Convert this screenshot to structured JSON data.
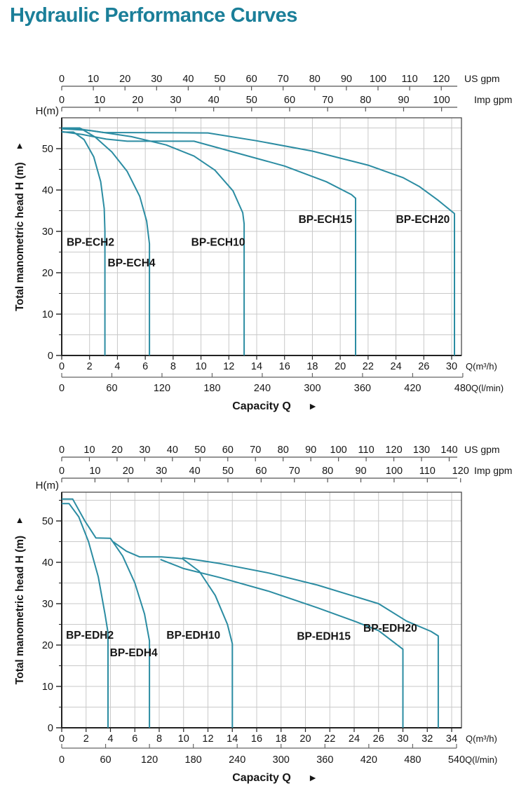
{
  "title": "Hydraulic Performance Curves",
  "colors": {
    "title": "#1b7f99",
    "curve": "#2b8ca2",
    "grid": "#c9c9c9",
    "frame": "#3d3d3d",
    "axis": "#555555",
    "text": "#161616"
  },
  "chart_data": [
    {
      "type": "line",
      "name": "BP-ECH series hydraulic performance",
      "top_axes": [
        {
          "unit": "US gpm",
          "ticks": [
            0,
            10,
            20,
            30,
            40,
            50,
            60,
            70,
            80,
            90,
            100,
            110,
            120
          ]
        },
        {
          "unit": "Imp gpm",
          "ticks": [
            0,
            10,
            20,
            30,
            40,
            50,
            60,
            70,
            80,
            90,
            100
          ]
        }
      ],
      "x_axes": [
        {
          "unit": "Q(m³/h)",
          "ticks": [
            0,
            2,
            4,
            6,
            8,
            10,
            12,
            14,
            16,
            18,
            20,
            22,
            24,
            26,
            30
          ]
        },
        {
          "unit": "Q(l/min)",
          "ticks": [
            0,
            60,
            120,
            180,
            240,
            300,
            360,
            420,
            480
          ]
        }
      ],
      "y_axis": {
        "corner_label": "H(m)",
        "axis_label": "Total manometric head H (m)",
        "arrow": "▲",
        "ticks": [
          0,
          10,
          20,
          30,
          40,
          50
        ],
        "minor_step": 5
      },
      "caption": {
        "text": "Capacity Q",
        "arrow": "►"
      },
      "series": [
        {
          "name": "BP-ECH2",
          "label_xy": [
            0.35,
            26.5
          ],
          "points": [
            [
              0,
              54
            ],
            [
              0.85,
              54
            ],
            [
              1.6,
              52.2
            ],
            [
              2.3,
              48
            ],
            [
              2.8,
              42
            ],
            [
              3.05,
              35.5
            ],
            [
              3.1,
              30
            ],
            [
              3.1,
              0
            ]
          ]
        },
        {
          "name": "BP-ECH4",
          "label_xy": [
            3.3,
            21.5
          ],
          "points": [
            [
              0,
              55
            ],
            [
              1.3,
              55
            ],
            [
              2.4,
              52.8
            ],
            [
              3.6,
              49.2
            ],
            [
              4.7,
              44.5
            ],
            [
              5.6,
              38.5
            ],
            [
              6.1,
              32.5
            ],
            [
              6.3,
              27
            ],
            [
              6.3,
              0
            ]
          ]
        },
        {
          "name": "BP-ECH10",
          "label_xy": [
            9.3,
            26.5
          ],
          "points": [
            [
              0,
              54.8
            ],
            [
              2,
              54.4
            ],
            [
              5,
              52.9
            ],
            [
              7.5,
              50.9
            ],
            [
              9.5,
              48.2
            ],
            [
              11,
              44.8
            ],
            [
              12.3,
              39.8
            ],
            [
              13,
              34.5
            ],
            [
              13.1,
              31.8
            ],
            [
              13.1,
              0
            ]
          ]
        },
        {
          "name": "BP-ECH15",
          "label_xy": [
            17,
            32
          ],
          "points": [
            [
              0,
              54.1
            ],
            [
              1.5,
              53.4
            ],
            [
              3.2,
              52.3
            ],
            [
              4.7,
              51.8
            ],
            [
              9.5,
              51.8
            ],
            [
              12.2,
              49.3
            ],
            [
              16,
              45.8
            ],
            [
              19,
              42
            ],
            [
              20.8,
              38.9
            ],
            [
              21.1,
              38
            ],
            [
              21.1,
              0
            ]
          ]
        },
        {
          "name": "BP-ECH20",
          "label_xy": [
            24,
            32
          ],
          "points": [
            [
              0,
              54.9
            ],
            [
              1.2,
              54.8
            ],
            [
              3,
              53.9
            ],
            [
              10.5,
              53.8
            ],
            [
              14,
              51.9
            ],
            [
              18,
              49.4
            ],
            [
              22,
              46
            ],
            [
              24.5,
              43
            ],
            [
              25.7,
              40.8
            ],
            [
              28,
              37.6
            ],
            [
              30.4,
              34.3
            ],
            [
              30.4,
              0
            ]
          ]
        }
      ]
    },
    {
      "type": "line",
      "name": "BP-EDH series hydraulic performance",
      "top_axes": [
        {
          "unit": "US gpm",
          "ticks": [
            0,
            10,
            20,
            30,
            40,
            50,
            60,
            70,
            80,
            90,
            100,
            110,
            120,
            130,
            140
          ]
        },
        {
          "unit": "Imp gpm",
          "ticks": [
            0,
            10,
            20,
            30,
            40,
            50,
            60,
            70,
            80,
            90,
            100,
            110,
            120
          ]
        }
      ],
      "x_axes": [
        {
          "unit": "Q(m³/h)",
          "ticks": [
            0,
            2,
            4,
            6,
            8,
            10,
            12,
            14,
            16,
            18,
            20,
            22,
            24,
            26,
            30,
            32,
            34
          ]
        },
        {
          "unit": "Q(l/min)",
          "ticks": [
            0,
            60,
            120,
            180,
            240,
            300,
            360,
            420,
            480,
            540
          ]
        }
      ],
      "y_axis": {
        "corner_label": "H(m)",
        "axis_label": "Total manometric head H (m)",
        "arrow": "▲",
        "ticks": [
          0,
          10,
          20,
          30,
          40,
          50
        ],
        "minor_step": 5
      },
      "caption": {
        "text": "Capacity Q",
        "arrow": "►"
      },
      "series": [
        {
          "name": "BP-EDH2",
          "label_xy": [
            0.35,
            21.5
          ],
          "points": [
            [
              0,
              54.2
            ],
            [
              0.6,
              54.2
            ],
            [
              1.4,
              51
            ],
            [
              2.2,
              45
            ],
            [
              3,
              36.5
            ],
            [
              3.55,
              27.5
            ],
            [
              3.8,
              23
            ],
            [
              3.8,
              0
            ]
          ]
        },
        {
          "name": "BP-EDH4",
          "label_xy": [
            3.95,
            17.3
          ],
          "points": [
            [
              0,
              55.3
            ],
            [
              0.9,
              55.3
            ],
            [
              1.9,
              50
            ],
            [
              2.8,
              45.9
            ],
            [
              4,
              45.8
            ],
            [
              5,
              41.5
            ],
            [
              6,
              35
            ],
            [
              6.8,
              27.5
            ],
            [
              7.2,
              21
            ],
            [
              7.2,
              0
            ]
          ]
        },
        {
          "name": "BP-EDH10",
          "label_xy": [
            8.6,
            21.5
          ],
          "points": [
            [
              4.2,
              45
            ],
            [
              5.3,
              42.7
            ],
            [
              6.4,
              41.3
            ],
            [
              8.2,
              41.3
            ],
            [
              9.9,
              40.9
            ],
            [
              11.3,
              37.8
            ],
            [
              12.6,
              32
            ],
            [
              13.6,
              25
            ],
            [
              14,
              20.3
            ],
            [
              14,
              0
            ]
          ]
        },
        {
          "name": "BP-EDH15",
          "label_xy": [
            19.3,
            21.3
          ],
          "points": [
            [
              8.1,
              40.7
            ],
            [
              10,
              38.5
            ],
            [
              13,
              36.3
            ],
            [
              17,
              33
            ],
            [
              21,
              29
            ],
            [
              24,
              25.8
            ],
            [
              26,
              23.5
            ],
            [
              30,
              19
            ],
            [
              30,
              0
            ]
          ]
        },
        {
          "name": "BP-EDH20",
          "label_xy": [
            24.75,
            23.2
          ],
          "points": [
            [
              9.9,
              41.1
            ],
            [
              13,
              39.7
            ],
            [
              17,
              37.4
            ],
            [
              21,
              34.5
            ],
            [
              24,
              31.8
            ],
            [
              26,
              30
            ],
            [
              30.3,
              25.8
            ],
            [
              32.3,
              23.3
            ],
            [
              32.9,
              22.2
            ],
            [
              32.9,
              0
            ]
          ]
        }
      ]
    }
  ]
}
